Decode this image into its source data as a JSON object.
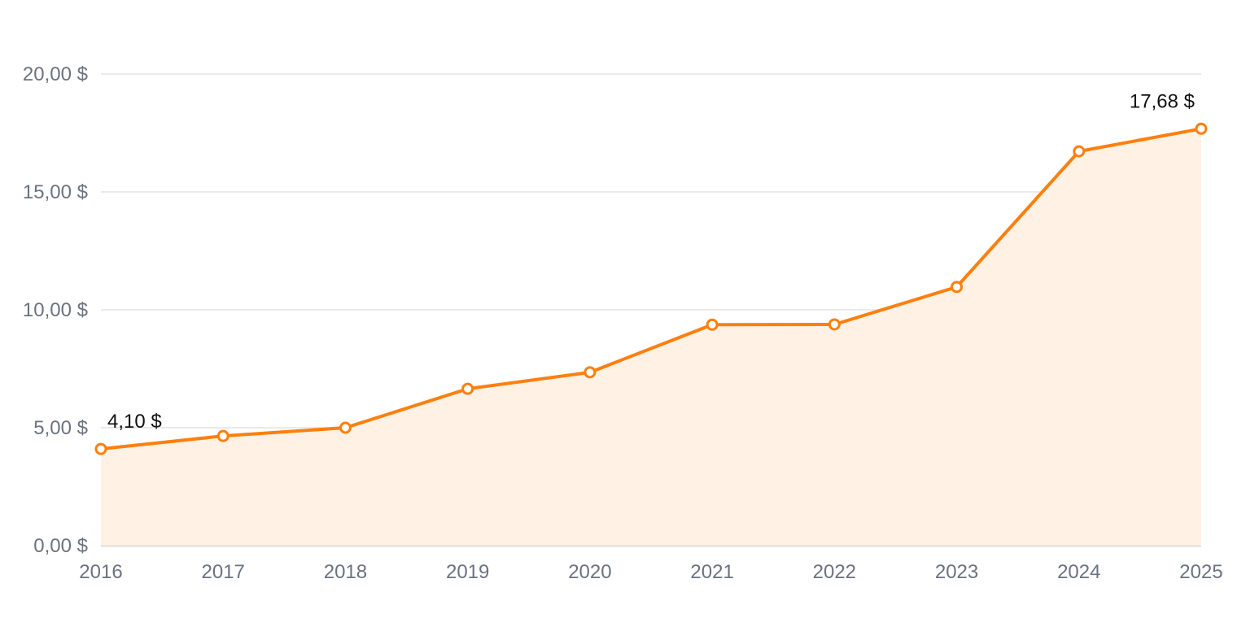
{
  "chart_data": {
    "type": "area",
    "categories": [
      "2016",
      "2017",
      "2018",
      "2019",
      "2020",
      "2021",
      "2022",
      "2023",
      "2024",
      "2025"
    ],
    "series": [
      {
        "values": [
          4.1,
          4.65,
          5.0,
          6.65,
          7.35,
          9.37,
          9.38,
          10.97,
          16.72,
          17.68
        ]
      }
    ],
    "yticks": [
      {
        "value": 0,
        "label": "0,00 $"
      },
      {
        "value": 5,
        "label": "5,00 $"
      },
      {
        "value": 10,
        "label": "10,00 $"
      },
      {
        "value": 15,
        "label": "15,00 $"
      },
      {
        "value": 20,
        "label": "20,00 $"
      }
    ],
    "ylim": [
      0,
      20
    ],
    "annotations": [
      {
        "index": 0,
        "label": "4,10 $"
      },
      {
        "index": 9,
        "label": "17,68 $"
      }
    ],
    "grid": true,
    "legend": "none",
    "colors": {
      "line": "#ff7f0e",
      "fill": "#fff2e5",
      "grid": "#e3e3e3",
      "tick_text": "#6b7280",
      "label_text": "#111111"
    }
  }
}
